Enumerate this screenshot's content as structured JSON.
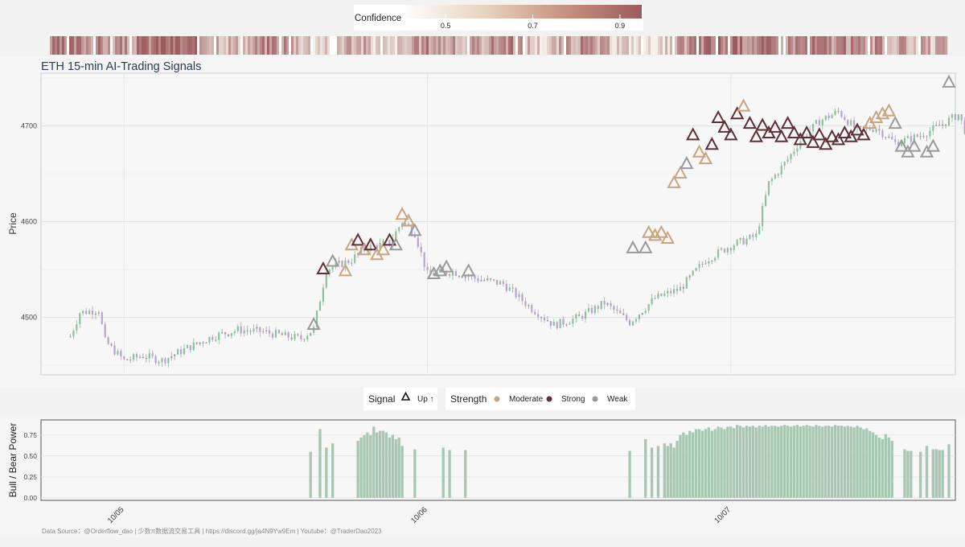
{
  "chart_data": {
    "type": "candlestick",
    "title": "ETH 15-min AI-Trading Signals",
    "ylabel": "Price",
    "ylim": [
      4440,
      4755
    ],
    "yticks": [
      4500,
      4600,
      4700
    ],
    "x_range": [
      "10/04 18:00",
      "10/07 17:15"
    ],
    "x_ticks": [
      "10/05",
      "10/06",
      "10/07"
    ],
    "grid": true,
    "candle_colors": {
      "up": "#8fbf9f",
      "down": "#b9a3c9",
      "neutral": "#9e9e9e"
    },
    "price_path": [
      [
        "10/04 19:45",
        4480
      ],
      [
        "10/04 20:30",
        4505
      ],
      [
        "10/04 22:00",
        4508
      ],
      [
        "10/04 22:30",
        4475
      ],
      [
        "10/05 00:00",
        4455
      ],
      [
        "10/05 01:30",
        4460
      ],
      [
        "10/05 03:00",
        4455
      ],
      [
        "10/05 05:00",
        4468
      ],
      [
        "10/05 07:00",
        4480
      ],
      [
        "10/05 09:00",
        4487
      ],
      [
        "10/05 11:00",
        4485
      ],
      [
        "10/05 13:00",
        4480
      ],
      [
        "10/05 14:00",
        4478
      ],
      [
        "10/05 15:00",
        4488
      ],
      [
        "10/05 16:00",
        4550
      ],
      [
        "10/05 18:00",
        4560
      ],
      [
        "10/05 19:00",
        4572
      ],
      [
        "10/05 21:00",
        4578
      ],
      [
        "10/05 22:00",
        4600
      ],
      [
        "10/05 23:00",
        4588
      ],
      [
        "10/06 00:00",
        4545
      ],
      [
        "10/06 02:00",
        4548
      ],
      [
        "10/06 04:00",
        4540
      ],
      [
        "10/06 06:00",
        4535
      ],
      [
        "10/06 08:00",
        4512
      ],
      [
        "10/06 10:00",
        4492
      ],
      [
        "10/06 12:00",
        4500
      ],
      [
        "10/06 14:00",
        4515
      ],
      [
        "10/06 16:00",
        4495
      ],
      [
        "10/06 18:00",
        4520
      ],
      [
        "10/06 20:00",
        4530
      ],
      [
        "10/06 22:00",
        4560
      ],
      [
        "10/07 00:00",
        4575
      ],
      [
        "10/07 02:00",
        4585
      ],
      [
        "10/07 03:00",
        4640
      ],
      [
        "10/07 04:30",
        4665
      ],
      [
        "10/07 05:30",
        4685
      ],
      [
        "10/07 07:00",
        4705
      ],
      [
        "10/07 08:30",
        4715
      ],
      [
        "10/07 10:00",
        4695
      ],
      [
        "10/07 11:30",
        4698
      ],
      [
        "10/07 13:00",
        4682
      ],
      [
        "10/07 15:00",
        4690
      ],
      [
        "10/07 16:30",
        4700
      ],
      [
        "10/07 18:00",
        4712
      ],
      [
        "10/07 19:00",
        4680
      ],
      [
        "10/07 20:30",
        4668
      ],
      [
        "10/07 21:30",
        4672
      ],
      [
        "10/07 23:00",
        4695
      ],
      [
        "10/08 00:00",
        4705
      ],
      [
        "10/08 00:45",
        4745
      ]
    ],
    "signals": [
      {
        "x": "10/05 15:00",
        "y": 4492,
        "strength": "Weak"
      },
      {
        "x": "10/05 15:45",
        "y": 4550,
        "strength": "Strong"
      },
      {
        "x": "10/05 16:30",
        "y": 4558,
        "strength": "Weak"
      },
      {
        "x": "10/05 17:30",
        "y": 4548,
        "strength": "Moderate"
      },
      {
        "x": "10/05 18:00",
        "y": 4575,
        "strength": "Moderate"
      },
      {
        "x": "10/05 18:30",
        "y": 4580,
        "strength": "Strong"
      },
      {
        "x": "10/05 19:00",
        "y": 4570,
        "strength": "Moderate"
      },
      {
        "x": "10/05 19:30",
        "y": 4575,
        "strength": "Strong"
      },
      {
        "x": "10/05 20:00",
        "y": 4565,
        "strength": "Moderate"
      },
      {
        "x": "10/05 20:30",
        "y": 4570,
        "strength": "Moderate"
      },
      {
        "x": "10/05 21:00",
        "y": 4580,
        "strength": "Strong"
      },
      {
        "x": "10/05 21:30",
        "y": 4575,
        "strength": "Weak"
      },
      {
        "x": "10/05 22:00",
        "y": 4607,
        "strength": "Moderate"
      },
      {
        "x": "10/05 22:30",
        "y": 4600,
        "strength": "Moderate"
      },
      {
        "x": "10/05 23:00",
        "y": 4590,
        "strength": "Weak"
      },
      {
        "x": "10/06 00:30",
        "y": 4545,
        "strength": "Weak"
      },
      {
        "x": "10/06 01:00",
        "y": 4548,
        "strength": "Weak"
      },
      {
        "x": "10/06 01:30",
        "y": 4552,
        "strength": "Weak"
      },
      {
        "x": "10/06 03:15",
        "y": 4548,
        "strength": "Weak"
      },
      {
        "x": "10/06 16:15",
        "y": 4572,
        "strength": "Weak"
      },
      {
        "x": "10/06 17:15",
        "y": 4572,
        "strength": "Weak"
      },
      {
        "x": "10/06 17:30",
        "y": 4588,
        "strength": "Moderate"
      },
      {
        "x": "10/06 18:00",
        "y": 4585,
        "strength": "Moderate"
      },
      {
        "x": "10/06 18:30",
        "y": 4588,
        "strength": "Moderate"
      },
      {
        "x": "10/06 19:00",
        "y": 4582,
        "strength": "Moderate"
      },
      {
        "x": "10/06 19:30",
        "y": 4640,
        "strength": "Moderate"
      },
      {
        "x": "10/06 20:00",
        "y": 4650,
        "strength": "Moderate"
      },
      {
        "x": "10/06 20:30",
        "y": 4660,
        "strength": "Weak"
      },
      {
        "x": "10/06 21:00",
        "y": 4690,
        "strength": "Strong"
      },
      {
        "x": "10/06 21:30",
        "y": 4672,
        "strength": "Moderate"
      },
      {
        "x": "10/06 22:00",
        "y": 4665,
        "strength": "Moderate"
      },
      {
        "x": "10/06 22:30",
        "y": 4680,
        "strength": "Strong"
      },
      {
        "x": "10/06 23:00",
        "y": 4708,
        "strength": "Strong"
      },
      {
        "x": "10/06 23:30",
        "y": 4698,
        "strength": "Strong"
      },
      {
        "x": "10/07 00:00",
        "y": 4690,
        "strength": "Strong"
      },
      {
        "x": "10/07 00:30",
        "y": 4712,
        "strength": "Strong"
      },
      {
        "x": "10/07 01:00",
        "y": 4720,
        "strength": "Moderate"
      },
      {
        "x": "10/07 01:30",
        "y": 4702,
        "strength": "Strong"
      },
      {
        "x": "10/07 02:00",
        "y": 4688,
        "strength": "Strong"
      },
      {
        "x": "10/07 02:30",
        "y": 4700,
        "strength": "Strong"
      },
      {
        "x": "10/07 03:00",
        "y": 4692,
        "strength": "Strong"
      },
      {
        "x": "10/07 03:30",
        "y": 4698,
        "strength": "Strong"
      },
      {
        "x": "10/07 04:00",
        "y": 4688,
        "strength": "Strong"
      },
      {
        "x": "10/07 04:30",
        "y": 4702,
        "strength": "Strong"
      },
      {
        "x": "10/07 05:00",
        "y": 4692,
        "strength": "Strong"
      },
      {
        "x": "10/07 05:30",
        "y": 4685,
        "strength": "Strong"
      },
      {
        "x": "10/07 06:00",
        "y": 4692,
        "strength": "Strong"
      },
      {
        "x": "10/07 06:30",
        "y": 4682,
        "strength": "Strong"
      },
      {
        "x": "10/07 07:00",
        "y": 4690,
        "strength": "Strong"
      },
      {
        "x": "10/07 07:30",
        "y": 4680,
        "strength": "Strong"
      },
      {
        "x": "10/07 08:00",
        "y": 4688,
        "strength": "Strong"
      },
      {
        "x": "10/07 08:30",
        "y": 4685,
        "strength": "Strong"
      },
      {
        "x": "10/07 09:00",
        "y": 4692,
        "strength": "Strong"
      },
      {
        "x": "10/07 09:30",
        "y": 4688,
        "strength": "Strong"
      },
      {
        "x": "10/07 10:00",
        "y": 4695,
        "strength": "Strong"
      },
      {
        "x": "10/07 10:30",
        "y": 4690,
        "strength": "Strong"
      },
      {
        "x": "10/07 11:00",
        "y": 4702,
        "strength": "Moderate"
      },
      {
        "x": "10/07 11:30",
        "y": 4708,
        "strength": "Moderate"
      },
      {
        "x": "10/07 12:00",
        "y": 4712,
        "strength": "Moderate"
      },
      {
        "x": "10/07 12:30",
        "y": 4715,
        "strength": "Moderate"
      },
      {
        "x": "10/07 13:00",
        "y": 4702,
        "strength": "Weak"
      },
      {
        "x": "10/07 13:30",
        "y": 4678,
        "strength": "Weak"
      },
      {
        "x": "10/07 14:00",
        "y": 4672,
        "strength": "Weak"
      },
      {
        "x": "10/07 14:30",
        "y": 4678,
        "strength": "Weak"
      },
      {
        "x": "10/07 15:30",
        "y": 4672,
        "strength": "Weak"
      },
      {
        "x": "10/07 16:00",
        "y": 4678,
        "strength": "Weak"
      },
      {
        "x": "10/07 17:15",
        "y": 4745,
        "strength": "Weak"
      }
    ],
    "confidence_bar": {
      "title": "Confidence",
      "ticks": [
        0.5,
        0.7,
        0.9
      ],
      "range": [
        0.4,
        0.95
      ],
      "color_low": "#f6f1ea",
      "color_high": "#9c5b5e",
      "strip": [
        [
          "10/04 18:00",
          0.75
        ],
        [
          "10/04 21:00",
          0.8
        ],
        [
          "10/05 00:00",
          0.7
        ],
        [
          "10/05 03:00",
          0.92
        ],
        [
          "10/05 06:00",
          0.78
        ],
        [
          "10/05 09:00",
          0.6
        ],
        [
          "10/05 12:00",
          0.82
        ],
        [
          "10/05 15:00",
          0.55
        ],
        [
          "10/05 18:00",
          0.7
        ],
        [
          "10/05 21:00",
          0.45
        ],
        [
          "10/06 00:00",
          0.78
        ],
        [
          "10/06 03:00",
          0.6
        ],
        [
          "10/06 06:00",
          0.82
        ],
        [
          "10/06 09:00",
          0.5
        ],
        [
          "10/06 12:00",
          0.75
        ],
        [
          "10/06 15:00",
          0.55
        ],
        [
          "10/06 18:00",
          0.4
        ],
        [
          "10/06 21:00",
          0.8
        ],
        [
          "10/07 00:00",
          0.85
        ],
        [
          "10/07 03:00",
          0.78
        ],
        [
          "10/07 06:00",
          0.8
        ],
        [
          "10/07 09:00",
          0.75
        ],
        [
          "10/07 12:00",
          0.7
        ],
        [
          "10/07 15:00",
          0.6
        ]
      ]
    },
    "legend": {
      "signal_title": "Signal",
      "signal_label": "Up ↑",
      "strength_title": "Strength",
      "items": [
        {
          "label": "Moderate",
          "color": "#caa380"
        },
        {
          "label": "Strong",
          "color": "#5c3036"
        },
        {
          "label": "Weak",
          "color": "#9a9a9a"
        }
      ],
      "placement": "between-panels-center"
    },
    "power": {
      "ylabel": "Bull / Bear Power",
      "yticks": [
        "0.00",
        "0.25",
        "0.50",
        "0.75"
      ],
      "ylim": [
        -0.03,
        0.93
      ],
      "bar_color": "#a8c7b1",
      "bars": [
        [
          "10/05 14:45",
          0.55
        ],
        [
          "10/05 15:30",
          0.82
        ],
        [
          "10/05 16:00",
          0.6
        ],
        [
          "10/05 16:30",
          0.65
        ],
        [
          "10/05 18:30",
          0.68
        ],
        [
          "10/05 18:45",
          0.72
        ],
        [
          "10/05 19:00",
          0.75
        ],
        [
          "10/05 19:15",
          0.78
        ],
        [
          "10/05 19:30",
          0.75
        ],
        [
          "10/05 19:45",
          0.85
        ],
        [
          "10/05 20:00",
          0.78
        ],
        [
          "10/05 20:15",
          0.8
        ],
        [
          "10/05 20:30",
          0.8
        ],
        [
          "10/05 20:45",
          0.78
        ],
        [
          "10/05 21:00",
          0.72
        ],
        [
          "10/05 21:15",
          0.75
        ],
        [
          "10/05 21:30",
          0.7
        ],
        [
          "10/05 21:45",
          0.72
        ],
        [
          "10/05 22:00",
          0.62
        ],
        [
          "10/05 23:00",
          0.58
        ],
        [
          "10/06 01:15",
          0.6
        ],
        [
          "10/06 01:45",
          0.57
        ],
        [
          "10/06 03:00",
          0.57
        ],
        [
          "10/06 16:00",
          0.56
        ],
        [
          "10/06 17:15",
          0.7
        ],
        [
          "10/06 17:45",
          0.6
        ],
        [
          "10/06 18:15",
          0.62
        ],
        [
          "10/06 18:45",
          0.65
        ],
        [
          "10/06 19:00",
          0.62
        ],
        [
          "10/06 19:15",
          0.65
        ],
        [
          "10/06 19:30",
          0.6
        ],
        [
          "10/06 19:45",
          0.68
        ],
        [
          "10/06 20:00",
          0.75
        ],
        [
          "10/06 20:15",
          0.78
        ],
        [
          "10/06 20:30",
          0.75
        ],
        [
          "10/06 20:45",
          0.8
        ],
        [
          "10/06 21:00",
          0.78
        ],
        [
          "10/06 21:15",
          0.82
        ],
        [
          "10/06 21:30",
          0.82
        ],
        [
          "10/06 21:45",
          0.8
        ],
        [
          "10/06 22:00",
          0.82
        ],
        [
          "10/06 22:15",
          0.84
        ],
        [
          "10/06 22:30",
          0.8
        ],
        [
          "10/06 22:45",
          0.82
        ],
        [
          "10/06 23:00",
          0.85
        ],
        [
          "10/06 23:15",
          0.84
        ],
        [
          "10/06 23:30",
          0.82
        ],
        [
          "10/06 23:45",
          0.85
        ],
        [
          "10/07 00:00",
          0.85
        ],
        [
          "10/07 00:15",
          0.83
        ],
        [
          "10/07 00:30",
          0.87
        ],
        [
          "10/07 00:45",
          0.86
        ],
        [
          "10/07 01:00",
          0.84
        ],
        [
          "10/07 01:15",
          0.86
        ],
        [
          "10/07 01:30",
          0.85
        ],
        [
          "10/07 01:45",
          0.86
        ],
        [
          "10/07 02:00",
          0.84
        ],
        [
          "10/07 02:15",
          0.86
        ],
        [
          "10/07 02:30",
          0.85
        ],
        [
          "10/07 02:45",
          0.87
        ],
        [
          "10/07 03:00",
          0.85
        ],
        [
          "10/07 03:15",
          0.86
        ],
        [
          "10/07 03:30",
          0.86
        ],
        [
          "10/07 03:45",
          0.85
        ],
        [
          "10/07 04:00",
          0.86
        ],
        [
          "10/07 04:15",
          0.87
        ],
        [
          "10/07 04:30",
          0.86
        ],
        [
          "10/07 04:45",
          0.85
        ],
        [
          "10/07 05:00",
          0.86
        ],
        [
          "10/07 05:15",
          0.87
        ],
        [
          "10/07 05:30",
          0.85
        ],
        [
          "10/07 05:45",
          0.86
        ],
        [
          "10/07 06:00",
          0.87
        ],
        [
          "10/07 06:15",
          0.86
        ],
        [
          "10/07 06:30",
          0.85
        ],
        [
          "10/07 06:45",
          0.87
        ],
        [
          "10/07 07:00",
          0.86
        ],
        [
          "10/07 07:15",
          0.85
        ],
        [
          "10/07 07:30",
          0.86
        ],
        [
          "10/07 07:45",
          0.86
        ],
        [
          "10/07 08:00",
          0.85
        ],
        [
          "10/07 08:15",
          0.87
        ],
        [
          "10/07 08:30",
          0.86
        ],
        [
          "10/07 08:45",
          0.86
        ],
        [
          "10/07 09:00",
          0.85
        ],
        [
          "10/07 09:15",
          0.86
        ],
        [
          "10/07 09:30",
          0.85
        ],
        [
          "10/07 09:45",
          0.84
        ],
        [
          "10/07 10:00",
          0.86
        ],
        [
          "10/07 10:15",
          0.84
        ],
        [
          "10/07 10:30",
          0.82
        ],
        [
          "10/07 10:45",
          0.83
        ],
        [
          "10/07 11:00",
          0.8
        ],
        [
          "10/07 11:15",
          0.78
        ],
        [
          "10/07 11:30",
          0.75
        ],
        [
          "10/07 11:45",
          0.72
        ],
        [
          "10/07 12:00",
          0.7
        ],
        [
          "10/07 12:15",
          0.76
        ],
        [
          "10/07 12:30",
          0.72
        ],
        [
          "10/07 12:45",
          0.68
        ],
        [
          "10/07 13:45",
          0.58
        ],
        [
          "10/07 14:00",
          0.56
        ],
        [
          "10/07 14:15",
          0.56
        ],
        [
          "10/07 15:00",
          0.55
        ],
        [
          "10/07 15:30",
          0.62
        ],
        [
          "10/07 16:00",
          0.58
        ],
        [
          "10/07 16:15",
          0.58
        ],
        [
          "10/07 16:30",
          0.57
        ],
        [
          "10/07 16:45",
          0.57
        ],
        [
          "10/07 17:15",
          0.64
        ]
      ]
    },
    "footer": "Data Source：@Orderflow_dao | 少数π数据流交易工具 | https://discord.gg/ja4N9Yw9Em | Youtube：@TraderDao2023"
  }
}
